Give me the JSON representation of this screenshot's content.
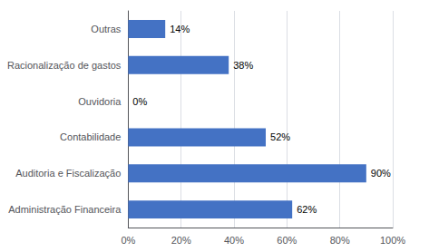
{
  "chart_data": {
    "type": "bar",
    "orientation": "horizontal",
    "categories": [
      "Administração Financeira",
      "Auditoria e Fiscalização",
      "Contabilidade",
      "Ouvidoria",
      "Racionalização de gastos",
      "Outras"
    ],
    "values": [
      0.62,
      0.9,
      0.52,
      0.0,
      0.38,
      0.14
    ],
    "value_labels": [
      "62%",
      "90%",
      "52%",
      "0%",
      "38%",
      "14%"
    ],
    "color": "#4472C4",
    "data_labels": true,
    "xlim": [
      0,
      1.0
    ],
    "xticks": [
      {
        "value": 0.0,
        "label": "0%"
      },
      {
        "value": 0.2,
        "label": "20%"
      },
      {
        "value": 0.4,
        "label": "40%"
      },
      {
        "value": 0.6,
        "label": "60%"
      },
      {
        "value": 0.8,
        "label": "80%"
      },
      {
        "value": 1.0,
        "label": "100%"
      }
    ],
    "grid": true
  }
}
